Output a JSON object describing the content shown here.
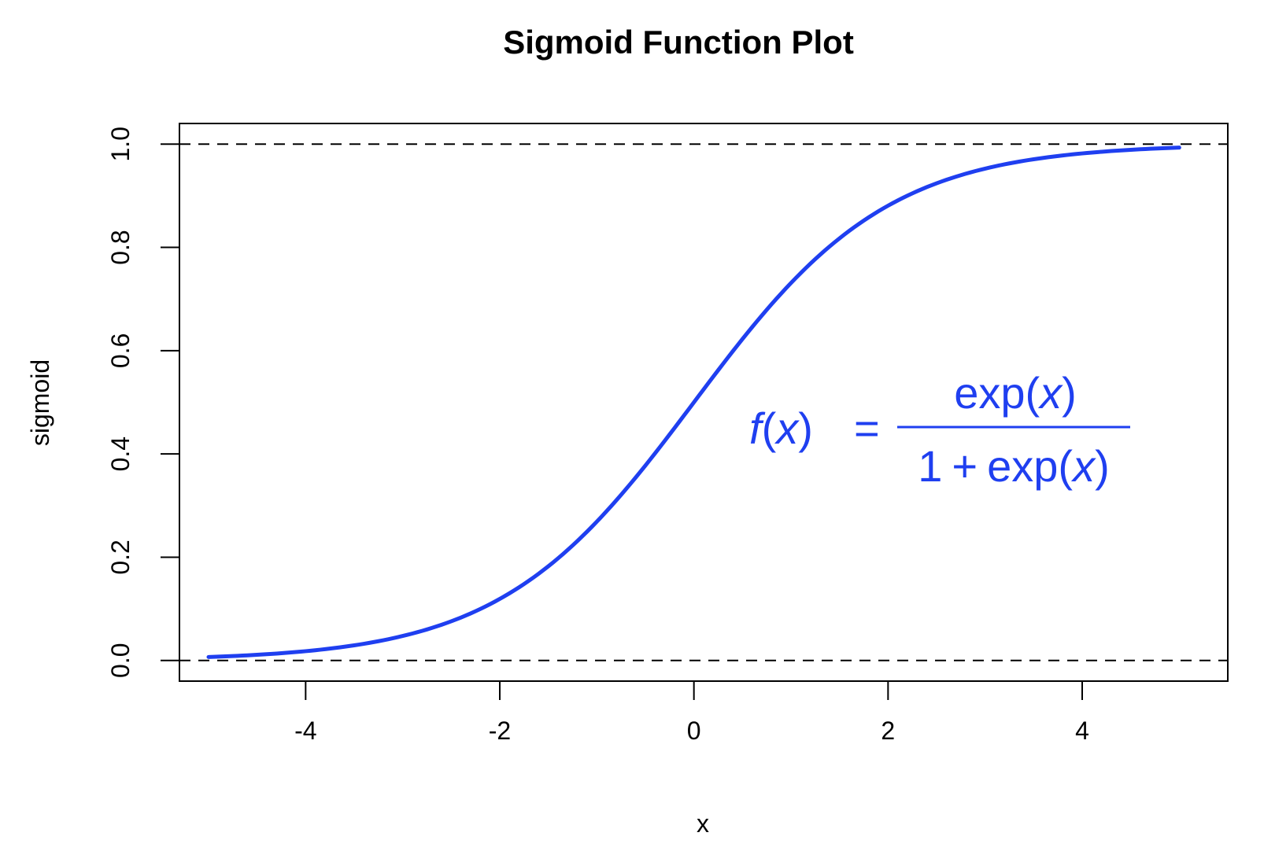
{
  "chart_data": {
    "type": "line",
    "title": "Sigmoid Function Plot",
    "xlabel": "x",
    "ylabel": "sigmoid",
    "xlim": [
      -5.3,
      5.5
    ],
    "ylim": [
      -0.04,
      1.04
    ],
    "x_ticks": [
      -4,
      -2,
      0,
      2,
      4
    ],
    "x_tick_labels": [
      "-4",
      "-2",
      "0",
      "2",
      "4"
    ],
    "y_ticks": [
      0.0,
      0.2,
      0.4,
      0.6,
      0.8,
      1.0
    ],
    "y_tick_labels": [
      "0.0",
      "0.2",
      "0.4",
      "0.6",
      "0.8",
      "1.0"
    ],
    "grid": false,
    "legend": "none",
    "series": [
      {
        "name": "sigmoid",
        "color": "#1f3ff0",
        "x": [
          -5,
          -4.5,
          -4,
          -3.5,
          -3,
          -2.5,
          -2,
          -1.5,
          -1,
          -0.5,
          0,
          0.5,
          1,
          1.5,
          2,
          2.5,
          3,
          3.5,
          4,
          4.5,
          5
        ],
        "y": [
          0.0067,
          0.011,
          0.018,
          0.0293,
          0.0474,
          0.0759,
          0.1192,
          0.1824,
          0.2689,
          0.3775,
          0.5,
          0.6225,
          0.7311,
          0.8176,
          0.8808,
          0.9241,
          0.9526,
          0.9707,
          0.982,
          0.989,
          0.9933
        ]
      }
    ],
    "reference_lines": [
      {
        "name": "lower-asymptote",
        "y": 0.0,
        "style": "dashed",
        "color": "#000000"
      },
      {
        "name": "upper-asymptote",
        "y": 1.0,
        "style": "dashed",
        "color": "#000000"
      }
    ],
    "annotation": {
      "color": "#1f3ff0",
      "lhs_func": "f",
      "lhs_arg": "x",
      "equals": "=",
      "numerator_fn": "exp",
      "numerator_arg": "x",
      "denominator_one": "1",
      "denominator_plus": "+",
      "denominator_fn": "exp",
      "denominator_arg": "x",
      "open_paren": "(",
      "close_paren": ")"
    }
  }
}
